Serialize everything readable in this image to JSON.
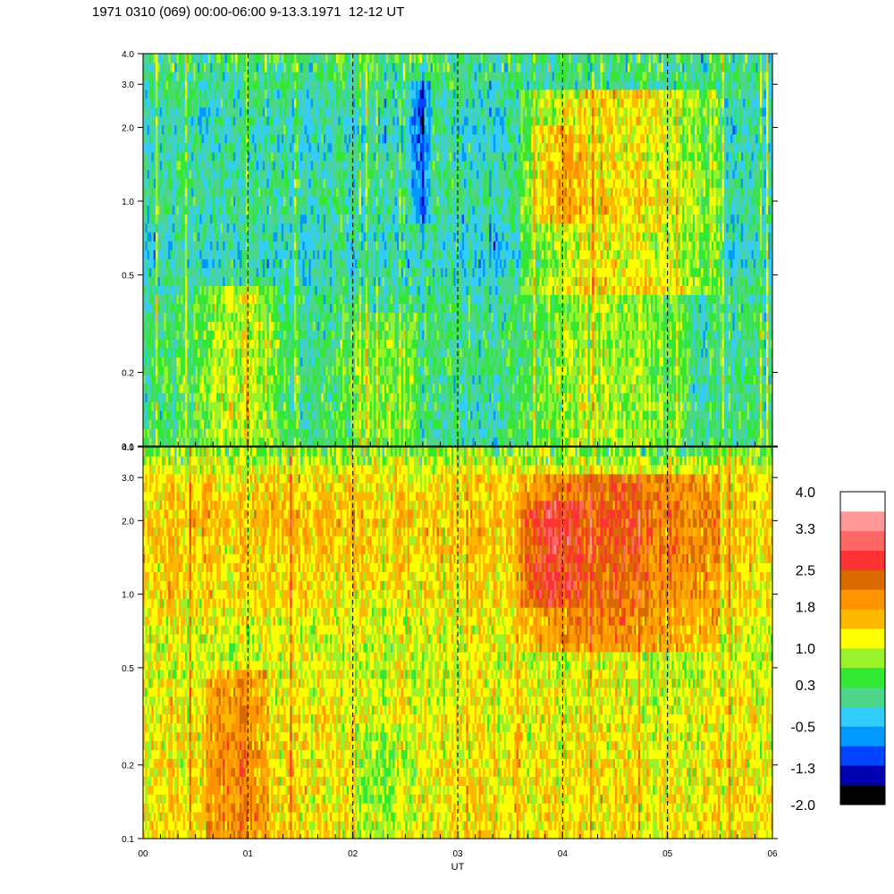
{
  "header": {
    "title": "1971 0310 (069) 00:00-06:00 9-13.3.1971  12-12 UT"
  },
  "colors": {
    "black": "#000000",
    "navy": "#0000b0",
    "blue": "#0044ff",
    "azure": "#0099ff",
    "cyan": "#33ccff",
    "sea_green": "#4dd68a",
    "green": "#33e833",
    "lime": "#99f22a",
    "yellow": "#ffff00",
    "amber": "#ffb800",
    "orange": "#ff9300",
    "rust": "#d96a00",
    "red": "#ff3333",
    "salmon": "#ff6666",
    "pink": "#ff9999",
    "white": "#ffffff"
  },
  "chart_data": [
    {
      "type": "heatmap",
      "panel": "top",
      "y_scale": "log",
      "ylim": [
        0.1,
        4.0
      ],
      "y_ticks": [
        0.1,
        0.2,
        0.5,
        1.0,
        2.0,
        3.0,
        4.0
      ],
      "y_tick_labels": [
        "0.1",
        "0.2",
        "0.5",
        "1.0",
        "2.0",
        "3.0",
        "4.0"
      ],
      "x_ticks": [
        0,
        1,
        2,
        3,
        4,
        5,
        6
      ],
      "x_tick_labels": [
        "00",
        "01",
        "02",
        "03",
        "04",
        "05",
        "06"
      ],
      "xlim": [
        0,
        6
      ],
      "xlabel": "UT",
      "dashed_vlines": [
        1,
        2,
        3,
        4,
        5
      ],
      "cell_width_hours": 0.02,
      "baseline": [
        {
          "y": 0.1,
          "level": 0.25
        },
        {
          "y": 0.2,
          "level": 0.25
        },
        {
          "y": 0.4,
          "level": 0.15
        },
        {
          "y": 0.6,
          "level": -0.2
        },
        {
          "y": 1.0,
          "level": 0.1
        },
        {
          "y": 2.0,
          "level": -0.1
        },
        {
          "y": 4.0,
          "level": 0.25
        }
      ],
      "features": [
        {
          "x0": 0.5,
          "x1": 1.3,
          "y0": 0.1,
          "y1": 0.45,
          "delta": 0.75
        },
        {
          "x0": 1.9,
          "x1": 2.6,
          "y0": 0.1,
          "y1": 0.35,
          "delta": 0.45
        },
        {
          "x0": 2.55,
          "x1": 2.75,
          "y0": 0.8,
          "y1": 3.0,
          "delta": -0.9
        },
        {
          "x0": 2.7,
          "x1": 3.4,
          "y0": 0.1,
          "y1": 0.2,
          "delta": -0.2
        },
        {
          "x0": 3.6,
          "x1": 5.5,
          "y0": 0.4,
          "y1": 2.8,
          "delta": 1.3
        },
        {
          "x0": 3.7,
          "x1": 4.2,
          "y0": 0.8,
          "y1": 2.0,
          "delta": 0.7
        },
        {
          "x0": 3.6,
          "x1": 5.2,
          "y0": 0.1,
          "y1": 0.4,
          "delta": 0.6
        },
        {
          "x0": 5.2,
          "x1": 6.0,
          "y0": 0.1,
          "y1": 0.3,
          "delta": -0.1
        }
      ]
    },
    {
      "type": "heatmap",
      "panel": "bottom",
      "y_scale": "log",
      "ylim": [
        0.1,
        4.0
      ],
      "y_ticks": [
        0.1,
        0.2,
        0.5,
        1.0,
        2.0,
        3.0,
        4.0
      ],
      "y_tick_labels": [
        "0.1",
        "0.2",
        "0.5",
        "1.0",
        "2.0",
        "3.0",
        "4.0"
      ],
      "x_ticks": [
        0,
        1,
        2,
        3,
        4,
        5,
        6
      ],
      "x_tick_labels": [
        "00",
        "01",
        "02",
        "03",
        "04",
        "05",
        "06"
      ],
      "xlim": [
        0,
        6
      ],
      "xlabel": "UT",
      "dashed_vlines": [
        1,
        2,
        3,
        4,
        5
      ],
      "cell_width_hours": 0.02,
      "baseline": [
        {
          "y": 0.1,
          "level": 1.3
        },
        {
          "y": 0.3,
          "level": 1.2
        },
        {
          "y": 0.6,
          "level": 1.0
        },
        {
          "y": 1.0,
          "level": 1.3
        },
        {
          "y": 2.0,
          "level": 1.5
        },
        {
          "y": 3.0,
          "level": 1.3
        },
        {
          "y": 4.0,
          "level": 0.6
        }
      ],
      "features": [
        {
          "x0": 0.6,
          "x1": 1.2,
          "y0": 0.1,
          "y1": 0.5,
          "delta": 0.8
        },
        {
          "x0": 2.0,
          "x1": 2.6,
          "y0": 0.1,
          "y1": 0.3,
          "delta": -0.4
        },
        {
          "x0": 3.6,
          "x1": 5.5,
          "y0": 0.6,
          "y1": 3.0,
          "delta": 0.9
        },
        {
          "x0": 3.6,
          "x1": 4.2,
          "y0": 0.9,
          "y1": 2.5,
          "delta": 0.6
        }
      ]
    }
  ],
  "colorbar": {
    "labels": [
      "4.0",
      "3.3",
      "2.5",
      "1.8",
      "1.0",
      "0.3",
      "-0.5",
      "-1.3",
      "-2.0"
    ],
    "min": -2.0,
    "max": 4.0,
    "bins": [
      "#000000",
      "#0000b0",
      "#0044ff",
      "#0099ff",
      "#33ccff",
      "#4dd68a",
      "#33e833",
      "#99f22a",
      "#ffff00",
      "#ffb800",
      "#ff9300",
      "#d96a00",
      "#ff3333",
      "#ff6666",
      "#ff9999",
      "#ffffff"
    ]
  }
}
